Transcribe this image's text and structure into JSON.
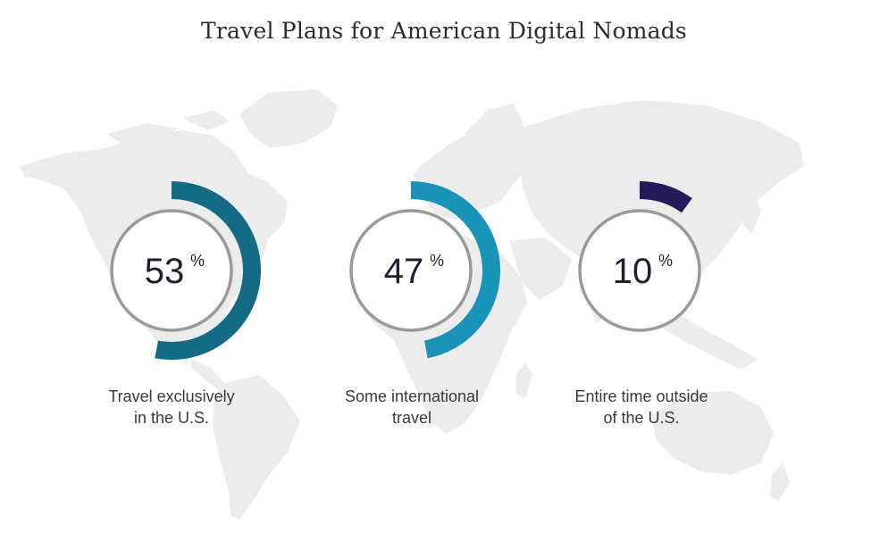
{
  "title": "Travel Plans for American Digital Nomads",
  "chart_data": {
    "type": "radial-progress",
    "title": "Travel Plans for American Digital Nomads",
    "unit": "%",
    "items": [
      {
        "value": 53,
        "label_line1": "Travel exclusively",
        "label_line2": "in the U.S.",
        "color": "#136c84"
      },
      {
        "value": 47,
        "label_line1": "Some international",
        "label_line2": "travel",
        "color": "#1a93b8"
      },
      {
        "value": 10,
        "label_line1": "Entire time outside",
        "label_line2": "of the U.S.",
        "color": "#241c5a"
      }
    ]
  },
  "colors": {
    "map": "#ececec",
    "circle": "#9a9a9a",
    "value_text": "#1f1f2e"
  }
}
